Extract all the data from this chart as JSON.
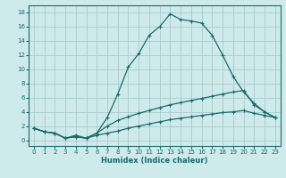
{
  "xlabel": "Humidex (Indice chaleur)",
  "bg_color": "#ceeaea",
  "grid_color": "#aacccc",
  "line_color": "#1a6b6b",
  "xlim": [
    -0.5,
    23.5
  ],
  "ylim": [
    -0.8,
    19.0
  ],
  "xticks": [
    0,
    1,
    2,
    3,
    4,
    5,
    6,
    7,
    8,
    9,
    10,
    11,
    12,
    13,
    14,
    15,
    16,
    17,
    18,
    19,
    20,
    21,
    22,
    23
  ],
  "yticks": [
    0,
    2,
    4,
    6,
    8,
    10,
    12,
    14,
    16,
    18
  ],
  "line1_x": [
    0,
    1,
    2,
    3,
    4,
    5,
    6,
    7,
    8,
    9,
    10,
    11,
    12,
    13,
    14,
    15,
    16,
    17,
    18,
    19,
    20,
    21,
    22,
    23
  ],
  "line1_y": [
    1.7,
    1.2,
    1.0,
    0.3,
    0.7,
    0.3,
    1.0,
    3.2,
    6.5,
    10.3,
    12.2,
    14.8,
    16.0,
    17.8,
    17.0,
    16.8,
    16.5,
    14.8,
    12.0,
    9.0,
    6.8,
    5.2,
    4.0,
    3.2
  ],
  "line2_x": [
    0,
    1,
    2,
    3,
    4,
    5,
    6,
    7,
    8,
    9,
    10,
    11,
    12,
    13,
    14,
    15,
    16,
    17,
    18,
    19,
    20,
    21,
    22,
    23
  ],
  "line2_y": [
    1.7,
    1.2,
    1.0,
    0.3,
    0.5,
    0.3,
    1.0,
    2.0,
    2.8,
    3.3,
    3.8,
    4.2,
    4.6,
    5.0,
    5.3,
    5.6,
    5.9,
    6.2,
    6.5,
    6.8,
    7.0,
    5.0,
    4.0,
    3.2
  ],
  "line3_x": [
    0,
    1,
    2,
    3,
    4,
    5,
    6,
    7,
    8,
    9,
    10,
    11,
    12,
    13,
    14,
    15,
    16,
    17,
    18,
    19,
    20,
    21,
    22,
    23
  ],
  "line3_y": [
    1.7,
    1.2,
    1.0,
    0.3,
    0.5,
    0.3,
    0.7,
    1.0,
    1.3,
    1.7,
    2.0,
    2.3,
    2.6,
    2.9,
    3.1,
    3.3,
    3.5,
    3.7,
    3.9,
    4.0,
    4.2,
    3.8,
    3.5,
    3.2
  ],
  "markersize": 2.5,
  "linewidth": 0.9
}
